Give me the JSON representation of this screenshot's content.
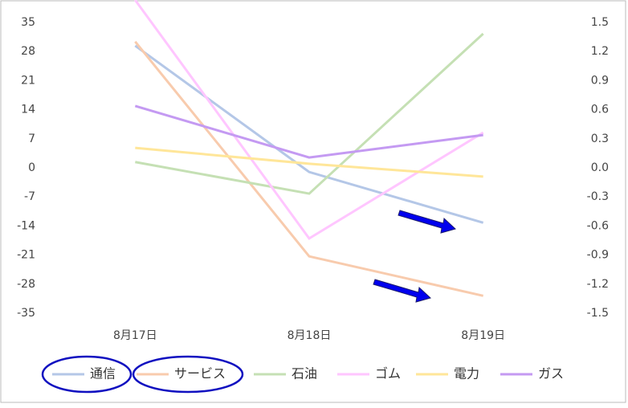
{
  "chart_data": {
    "type": "line",
    "categories": [
      "8月17日",
      "8月18日",
      "8月19日"
    ],
    "series": [
      {
        "name": "通信",
        "color": "#b4c7e7",
        "values": [
          29.4,
          -1,
          -13.2
        ]
      },
      {
        "name": "サービス",
        "color": "#f8cbad",
        "values": [
          30.4,
          -21.3,
          -30.8
        ]
      },
      {
        "name": "石油",
        "color": "#c5e0b4",
        "values": [
          1.4,
          -6.2,
          32.3
        ]
      },
      {
        "name": "ゴム",
        "color": "#ffc6ff",
        "values": [
          40.4,
          -17,
          8.5
        ]
      },
      {
        "name": "電力",
        "color": "#ffe699",
        "values": [
          4.8,
          1,
          -2.1
        ]
      },
      {
        "name": "ガス",
        "color": "#c49af2",
        "values": [
          14.9,
          2.5,
          7.9
        ]
      }
    ],
    "ylim": [
      -35,
      35
    ],
    "yticks": [
      -35,
      -28,
      -21,
      -14,
      -7,
      0,
      7,
      14,
      21,
      28,
      35
    ],
    "y2lim": [
      -1.5,
      1.5
    ],
    "y2ticks": [
      -1.5,
      -1.2,
      -0.9,
      -0.6,
      -0.3,
      {
        "value": 0,
        "label": "0.0"
      },
      0.3,
      0.6,
      0.9,
      1.2,
      1.5
    ],
    "legend": "bottom"
  }
}
